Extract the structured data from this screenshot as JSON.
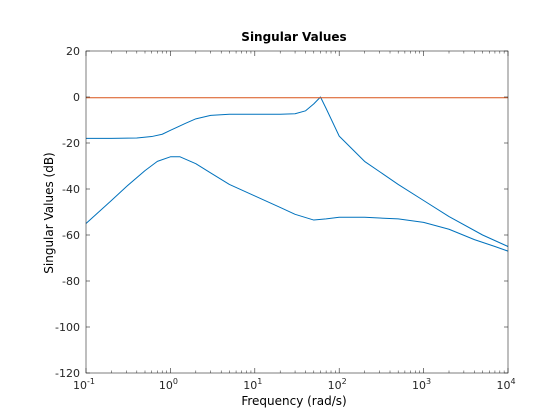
{
  "chart_data": {
    "type": "line",
    "title": "Singular Values",
    "xlabel": "Frequency (rad/s)",
    "ylabel": "Singular Values (dB)",
    "x_scale": "log",
    "xlim": [
      0.1,
      10000
    ],
    "ylim": [
      -120,
      20
    ],
    "x_ticks": [
      {
        "value": 0.1,
        "base": "10",
        "exp": "-1"
      },
      {
        "value": 1,
        "base": "10",
        "exp": "0"
      },
      {
        "value": 10,
        "base": "10",
        "exp": "1"
      },
      {
        "value": 100,
        "base": "10",
        "exp": "2"
      },
      {
        "value": 1000,
        "base": "10",
        "exp": "3"
      },
      {
        "value": 10000,
        "base": "10",
        "exp": "4"
      }
    ],
    "y_ticks": [
      20,
      0,
      -20,
      -40,
      -60,
      -80,
      -100,
      -120
    ],
    "grid": false,
    "series": [
      {
        "color": "#0072bd",
        "x": [
          0.1,
          0.2,
          0.4,
          0.6,
          0.8,
          1.0,
          1.5,
          2,
          3,
          5,
          10,
          20,
          30,
          40,
          50,
          60,
          70,
          100,
          200,
          500,
          1000,
          2000,
          5000,
          10000
        ],
        "y": [
          -18,
          -18,
          -17.8,
          -17.2,
          -16.2,
          -14.5,
          -11.5,
          -9.5,
          -8,
          -7.5,
          -7.5,
          -7.5,
          -7.3,
          -6,
          -3,
          0,
          -5,
          -17,
          -28,
          -38,
          -45,
          -52,
          -60,
          -65
        ]
      },
      {
        "color": "#0072bd",
        "x": [
          0.1,
          0.2,
          0.3,
          0.5,
          0.7,
          1.0,
          1.3,
          2,
          3,
          5,
          10,
          20,
          30,
          50,
          70,
          100,
          200,
          500,
          1000,
          2000,
          4000,
          7000,
          10000
        ],
        "y": [
          -55,
          -45,
          -39,
          -32,
          -28,
          -26,
          -26,
          -29,
          -33,
          -38,
          -43,
          -48,
          -51,
          -53.5,
          -53,
          -52.3,
          -52.3,
          -53,
          -54.5,
          -57.5,
          -62,
          -65,
          -67
        ]
      },
      {
        "color": "#d95319",
        "x": [
          0.1,
          10000
        ],
        "y": [
          -0.3,
          -0.3
        ]
      }
    ]
  }
}
